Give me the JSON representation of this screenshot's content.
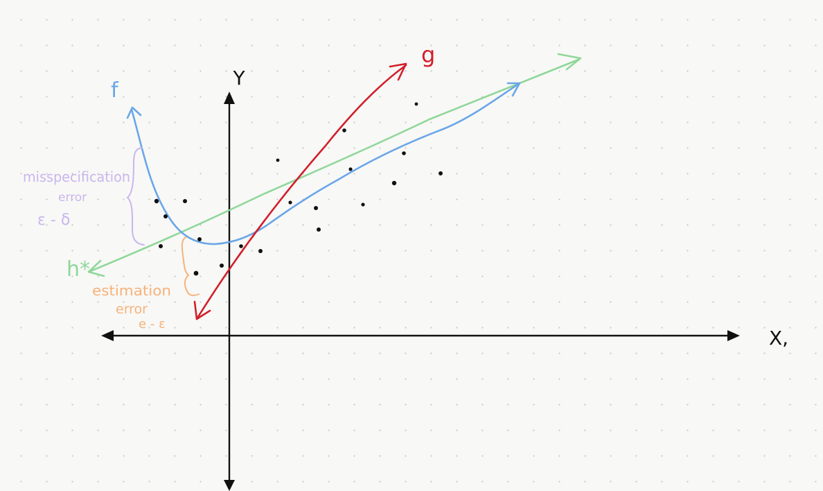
{
  "axes": {
    "y_label": "Y",
    "x_label": "X,"
  },
  "curves": {
    "f": {
      "label": "f",
      "color": "#6aa6e8"
    },
    "g": {
      "label": "g",
      "color": "#d11f2a"
    },
    "h_star": {
      "label": "h*",
      "color": "#8fd79a"
    }
  },
  "annotations": {
    "misspecification": {
      "line1": "misspecification",
      "line2": "error",
      "line3": "ε - δ",
      "color": "#c9b6ee"
    },
    "estimation": {
      "line1": "estimation",
      "line2": "error",
      "line3": "e - ε",
      "color": "#f6b27a"
    }
  },
  "colors": {
    "axis": "#111111",
    "points": "#111111"
  }
}
